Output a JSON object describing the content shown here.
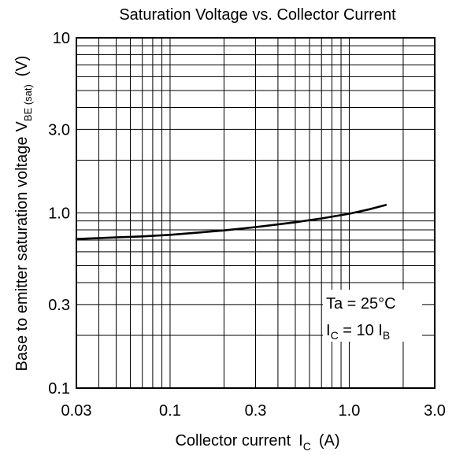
{
  "chart_data": {
    "type": "line",
    "title": "Saturation Voltage vs. Collector Current",
    "xlabel": {
      "prefix": "Collector current",
      "symbol": "I",
      "subscript": "C",
      "unit": "(A)"
    },
    "ylabel": {
      "prefix": "Base to emitter saturation voltage",
      "symbol": "V",
      "subscript": "BE (sat)",
      "unit": "(V)"
    },
    "xscale": "log",
    "yscale": "log",
    "xlim": [
      0.03,
      3.0
    ],
    "ylim": [
      0.1,
      10
    ],
    "xticks": [
      0.03,
      0.1,
      0.3,
      1.0,
      3.0
    ],
    "xtick_labels": [
      "0.03",
      "0.1",
      "0.3",
      "1.0",
      "3.0"
    ],
    "yticks": [
      0.1,
      0.3,
      1.0,
      3.0,
      10
    ],
    "ytick_labels": [
      "0.1",
      "0.3",
      "1.0",
      "3.0",
      "10"
    ],
    "grid": true,
    "series": [
      {
        "x": [
          0.03,
          0.05,
          0.07,
          0.1,
          0.15,
          0.2,
          0.3,
          0.4,
          0.5,
          0.7,
          1.0,
          1.3,
          1.6
        ],
        "y": [
          0.71,
          0.725,
          0.735,
          0.75,
          0.775,
          0.795,
          0.83,
          0.86,
          0.885,
          0.93,
          0.99,
          1.05,
          1.11
        ]
      }
    ],
    "annotations": {
      "ta": "Ta = 25°C",
      "cond": {
        "symbol1": "I",
        "sub1": "C",
        "mid": " = 10 ",
        "symbol2": "I",
        "sub2": "B"
      }
    }
  }
}
